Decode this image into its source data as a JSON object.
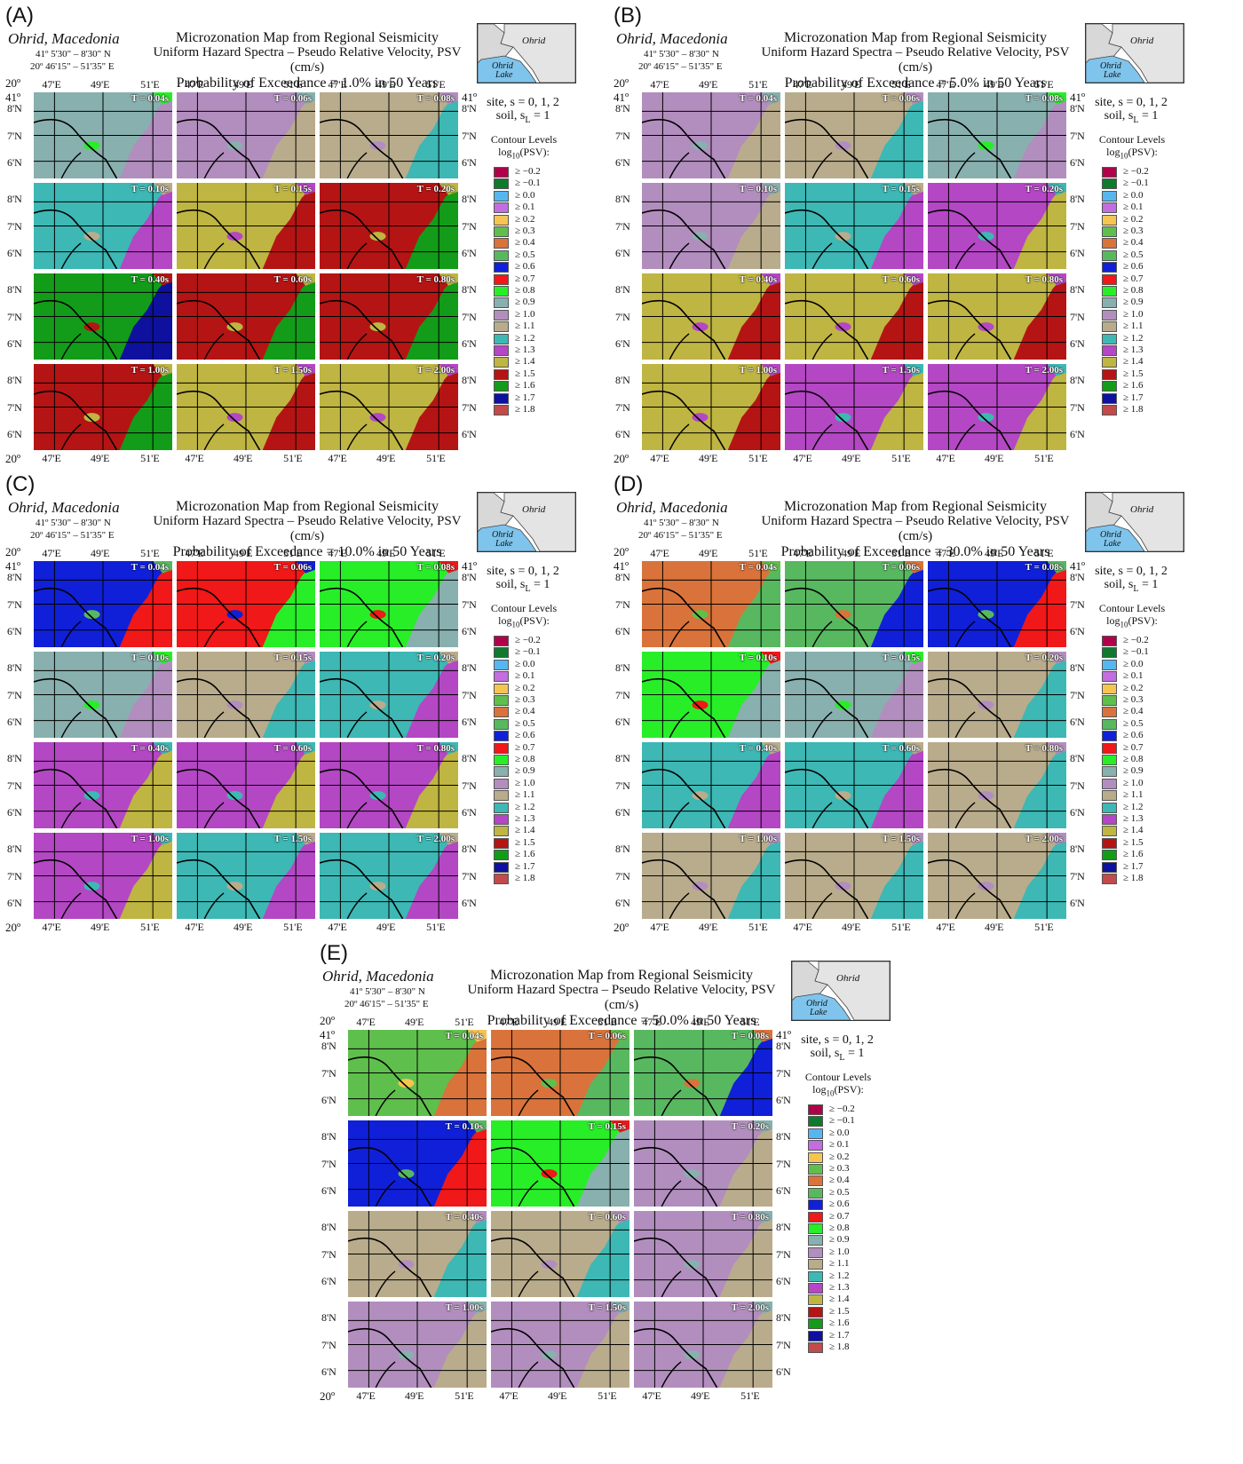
{
  "panels": [
    {
      "label": "(A)",
      "poe": "Probability of Exceedance =  1.0% in 50 Years",
      "tiles": [
        [
          11,
          12,
          13
        ],
        [
          14,
          16,
          17
        ],
        [
          18,
          17,
          17
        ],
        [
          17,
          16,
          16
        ]
      ]
    },
    {
      "label": "(B)",
      "poe": "Probability of Exceedance =  5.0% in 50 Years",
      "tiles": [
        [
          12,
          13,
          11
        ],
        [
          12,
          14,
          15
        ],
        [
          16,
          16,
          16
        ],
        [
          16,
          15,
          15
        ]
      ]
    },
    {
      "label": "(C)",
      "poe": "Probability of Exceedance = 10.0% in 50 Years",
      "tiles": [
        [
          8,
          9,
          10
        ],
        [
          11,
          13,
          14
        ],
        [
          15,
          15,
          15
        ],
        [
          15,
          14,
          14
        ]
      ]
    },
    {
      "label": "(D)",
      "poe": "Probability of Exceedance = 30.0% in 50 Years",
      "tiles": [
        [
          6,
          7,
          8
        ],
        [
          10,
          11,
          13
        ],
        [
          14,
          14,
          13
        ],
        [
          13,
          13,
          13
        ]
      ]
    },
    {
      "label": "(E)",
      "poe": "Probability of Exceedance = 50.0% in 50 Years",
      "tiles": [
        [
          5,
          6,
          7
        ],
        [
          8,
          10,
          12
        ],
        [
          13,
          13,
          12
        ],
        [
          12,
          12,
          12
        ]
      ]
    }
  ],
  "common": {
    "place": "Ohrid, Macedonia",
    "lat_range": "41º 5'30\" –  8'30\" N",
    "lon_range": "20º  46'15\" – 51'35\" E",
    "title": "Microzonation Map from Regional Seismicity",
    "subtitle": "Uniform Hazard Spectra – Pseudo Relative Velocity, PSV (cm/s)",
    "inset_city": "Ohrid",
    "inset_lake1": "Ohrid",
    "inset_lake2": "Lake",
    "site_line": "site, s = 0, 1, 2",
    "soil_line": "soil, s",
    "soil_sub": "L",
    "soil_val": " = 1",
    "contour_title": "Contour Levels",
    "contour_sub_pre": "log",
    "contour_sub_num": "10",
    "contour_sub_post": "(PSV):",
    "corner_lat": "41º",
    "corner_lon": "20º",
    "lat_labels": [
      "8'N",
      "7'N",
      "6'N"
    ],
    "lon_labels": [
      "47'E",
      "49'E",
      "51'E"
    ],
    "periods": [
      "T = 0.04s",
      "T = 0.06s",
      "T = 0.08s",
      "T = 0.10s",
      "T = 0.15s",
      "T = 0.20s",
      "T = 0.40s",
      "T = 0.60s",
      "T = 0.80s",
      "T = 1.00s",
      "T = 1.50s",
      "T = 2.00s"
    ]
  },
  "legend": [
    {
      "label": "≥ −0.2",
      "color": "#b0004a"
    },
    {
      "label": "≥ −0.1",
      "color": "#0f7a2e"
    },
    {
      "label": "≥  0.0",
      "color": "#56b6f0"
    },
    {
      "label": "≥  0.1",
      "color": "#c36de0"
    },
    {
      "label": "≥  0.2",
      "color": "#f5c451"
    },
    {
      "label": "≥  0.3",
      "color": "#5fbf4c"
    },
    {
      "label": "≥  0.4",
      "color": "#d9733b"
    },
    {
      "label": "≥  0.5",
      "color": "#58b860"
    },
    {
      "label": "≥  0.6",
      "color": "#1020d8"
    },
    {
      "label": "≥  0.7",
      "color": "#f01818"
    },
    {
      "label": "≥  0.8",
      "color": "#28ee28"
    },
    {
      "label": "≥  0.9",
      "color": "#88b0ae"
    },
    {
      "label": "≥  1.0",
      "color": "#b28ebe"
    },
    {
      "label": "≥  1.1",
      "color": "#b9ac8c"
    },
    {
      "label": "≥  1.2",
      "color": "#3db8b4"
    },
    {
      "label": "≥  1.3",
      "color": "#b447c4"
    },
    {
      "label": "≥  1.4",
      "color": "#bfb542"
    },
    {
      "label": "≥  1.5",
      "color": "#b51414"
    },
    {
      "label": "≥  1.6",
      "color": "#139c19"
    },
    {
      "label": "≥  1.7",
      "color": "#0d119e"
    },
    {
      "label": "≥  1.8",
      "color": "#c24a4a"
    }
  ]
}
